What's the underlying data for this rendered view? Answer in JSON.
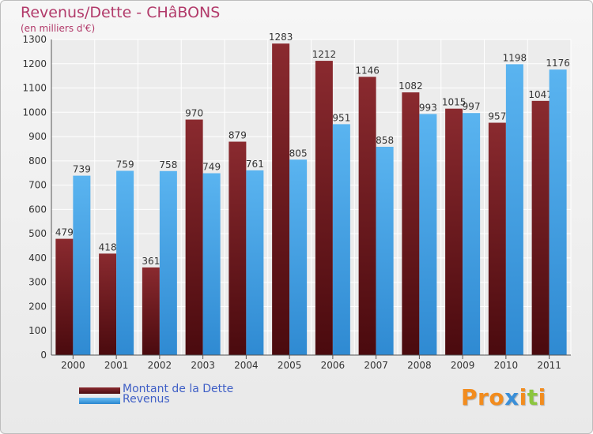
{
  "chart_data": {
    "type": "bar",
    "title": "Revenus/Dette - CHâBONS",
    "subtitle": "(en milliers d'€)",
    "categories": [
      "2000",
      "2001",
      "2002",
      "2003",
      "2004",
      "2005",
      "2006",
      "2007",
      "2008",
      "2009",
      "2010",
      "2011"
    ],
    "series": [
      {
        "name": "Montant de la Dette",
        "color": "#7a1f24",
        "values": [
          479,
          418,
          361,
          970,
          879,
          1283,
          1212,
          1146,
          1082,
          1015,
          957,
          1047
        ]
      },
      {
        "name": "Revenus",
        "color": "#4aa3e6",
        "values": [
          739,
          759,
          758,
          749,
          761,
          805,
          951,
          858,
          993,
          997,
          1198,
          1176
        ]
      }
    ],
    "ylim": [
      0,
      1300
    ],
    "yticks": [
      0,
      100,
      200,
      300,
      400,
      500,
      600,
      700,
      800,
      900,
      1000,
      1100,
      1200,
      1300
    ],
    "grid": true,
    "legend_position": "bottom-left"
  },
  "logo": {
    "text": "Proxiti"
  }
}
